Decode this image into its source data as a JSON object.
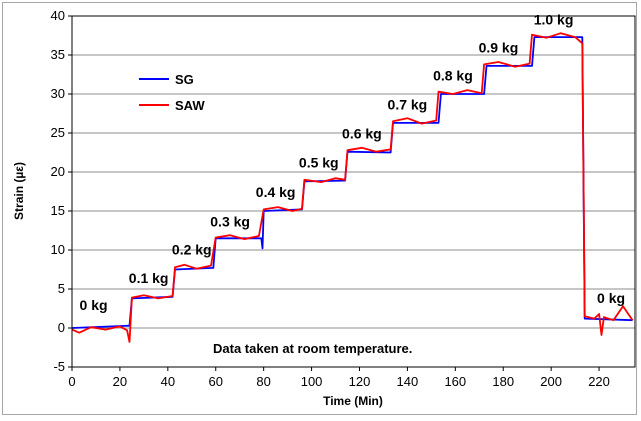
{
  "chart_data": {
    "type": "line",
    "xlabel": "Time (Min)",
    "ylabel": "Strain (µε)",
    "xlim": [
      0,
      235
    ],
    "ylim": [
      -5,
      40
    ],
    "x_ticks": [
      0,
      20,
      40,
      60,
      80,
      100,
      120,
      140,
      160,
      180,
      200,
      220
    ],
    "y_ticks": [
      -5,
      0,
      5,
      10,
      15,
      20,
      25,
      30,
      35,
      40
    ],
    "grid": "horizontal",
    "legend_position": "top-left",
    "annotation": "Data taken at room temperature.",
    "step_labels": [
      {
        "text": "0 kg",
        "x": 9,
        "y": 2.3
      },
      {
        "text": "0.1 kg",
        "x": 32,
        "y": 5.8
      },
      {
        "text": "0.2 kg",
        "x": 50,
        "y": 9.4
      },
      {
        "text": "0.3 kg",
        "x": 66,
        "y": 13.0
      },
      {
        "text": "0.4 kg",
        "x": 85,
        "y": 16.8
      },
      {
        "text": "0.5 kg",
        "x": 103,
        "y": 20.6
      },
      {
        "text": "0.6 kg",
        "x": 121,
        "y": 24.3
      },
      {
        "text": "0.7 kg",
        "x": 140,
        "y": 28.0
      },
      {
        "text": "0.8 kg",
        "x": 159,
        "y": 31.7
      },
      {
        "text": "0.9 kg",
        "x": 178,
        "y": 35.3
      },
      {
        "text": "1.0 kg",
        "x": 201,
        "y": 38.9
      },
      {
        "text": "0 kg",
        "x": 225,
        "y": 3.2
      }
    ],
    "series": [
      {
        "name": "SG",
        "color": "#0000ff",
        "points": [
          [
            0,
            0
          ],
          [
            24,
            0.3
          ],
          [
            25,
            3.8
          ],
          [
            42,
            4.0
          ],
          [
            43,
            7.5
          ],
          [
            59,
            7.7
          ],
          [
            60,
            11.5
          ],
          [
            79,
            11.5
          ],
          [
            79.5,
            10.2
          ],
          [
            80,
            15.0
          ],
          [
            96,
            15.2
          ],
          [
            97,
            18.8
          ],
          [
            114,
            18.9
          ],
          [
            115,
            22.6
          ],
          [
            133,
            22.5
          ],
          [
            134,
            26.3
          ],
          [
            153,
            26.3
          ],
          [
            154,
            30.0
          ],
          [
            172,
            30.0
          ],
          [
            173,
            33.6
          ],
          [
            192,
            33.6
          ],
          [
            193,
            37.3
          ],
          [
            213,
            37.3
          ],
          [
            214,
            1.2
          ],
          [
            234,
            1.0
          ]
        ]
      },
      {
        "name": "SAW",
        "color": "#ff0000",
        "points": [
          [
            0,
            -0.2
          ],
          [
            3,
            -0.6
          ],
          [
            8,
            0.1
          ],
          [
            14,
            -0.2
          ],
          [
            20,
            0.2
          ],
          [
            23,
            -0.3
          ],
          [
            24,
            -1.8
          ],
          [
            25,
            3.9
          ],
          [
            30,
            4.2
          ],
          [
            36,
            3.8
          ],
          [
            42,
            4.1
          ],
          [
            43,
            7.8
          ],
          [
            47,
            8.1
          ],
          [
            52,
            7.6
          ],
          [
            58,
            8.0
          ],
          [
            60,
            11.6
          ],
          [
            66,
            11.9
          ],
          [
            72,
            11.4
          ],
          [
            78,
            11.8
          ],
          [
            80,
            15.2
          ],
          [
            86,
            15.5
          ],
          [
            92,
            15.0
          ],
          [
            96,
            15.3
          ],
          [
            97,
            19.0
          ],
          [
            104,
            18.7
          ],
          [
            110,
            19.2
          ],
          [
            114,
            19.0
          ],
          [
            115,
            22.8
          ],
          [
            121,
            23.1
          ],
          [
            127,
            22.6
          ],
          [
            133,
            22.9
          ],
          [
            134,
            26.5
          ],
          [
            140,
            26.9
          ],
          [
            146,
            26.2
          ],
          [
            152,
            26.6
          ],
          [
            153,
            30.3
          ],
          [
            159,
            30.0
          ],
          [
            165,
            30.5
          ],
          [
            171,
            30.1
          ],
          [
            172,
            33.8
          ],
          [
            178,
            34.1
          ],
          [
            185,
            33.5
          ],
          [
            191,
            33.9
          ],
          [
            192,
            37.6
          ],
          [
            198,
            37.2
          ],
          [
            204,
            37.8
          ],
          [
            210,
            37.3
          ],
          [
            213,
            36.5
          ],
          [
            214,
            1.5
          ],
          [
            218,
            1.2
          ],
          [
            220,
            1.8
          ],
          [
            221,
            -0.9
          ],
          [
            222,
            1.4
          ],
          [
            226,
            1.0
          ],
          [
            230,
            2.8
          ],
          [
            234,
            1.0
          ]
        ]
      }
    ]
  }
}
